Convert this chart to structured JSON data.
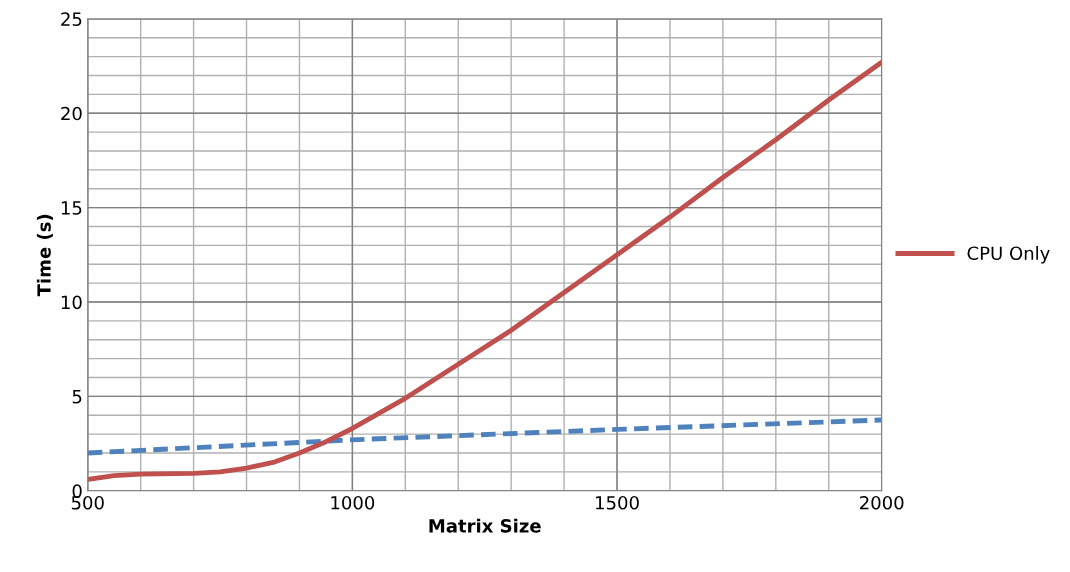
{
  "chart_data": {
    "type": "line",
    "xlabel": "Matrix Size",
    "ylabel": "Time (s)",
    "xlim": [
      500,
      2000
    ],
    "ylim": [
      0,
      25
    ],
    "xticks": [
      500,
      {
        "value": 600,
        "label": null
      },
      {
        "value": 700,
        "label": null
      },
      {
        "value": 800,
        "label": null
      },
      {
        "value": 900,
        "label": null
      },
      1000,
      {
        "value": 1100,
        "label": null
      },
      {
        "value": 1200,
        "label": null
      },
      {
        "value": 1300,
        "label": null
      },
      {
        "value": 1400,
        "label": null
      },
      1500,
      {
        "value": 1600,
        "label": null
      },
      {
        "value": 1700,
        "label": null
      },
      {
        "value": 1800,
        "label": null
      },
      {
        "value": 1900,
        "label": null
      },
      2000
    ],
    "yticks": [
      0,
      {
        "value": 1,
        "label": null
      },
      {
        "value": 2,
        "label": null
      },
      {
        "value": 3,
        "label": null
      },
      {
        "value": 4,
        "label": null
      },
      5,
      {
        "value": 6,
        "label": null
      },
      {
        "value": 7,
        "label": null
      },
      {
        "value": 8,
        "label": null
      },
      {
        "value": 9,
        "label": null
      },
      10,
      {
        "value": 11,
        "label": null
      },
      {
        "value": 12,
        "label": null
      },
      {
        "value": 13,
        "label": null
      },
      {
        "value": 14,
        "label": null
      },
      15,
      {
        "value": 16,
        "label": null
      },
      {
        "value": 17,
        "label": null
      },
      {
        "value": 18,
        "label": null
      },
      {
        "value": 19,
        "label": null
      },
      20,
      {
        "value": 21,
        "label": null
      },
      {
        "value": 22,
        "label": null
      },
      {
        "value": 23,
        "label": null
      },
      {
        "value": 24,
        "label": null
      },
      25
    ],
    "grid": true,
    "legend": "right",
    "marker": "none",
    "series": [
      {
        "color": "#4f81bd",
        "line_style": "dashed",
        "x": [
          500,
          1000,
          1500,
          2000
        ],
        "values": [
          2.0,
          2.7,
          3.25,
          3.75
        ]
      },
      {
        "name": "CPU Only",
        "color": "#c0504d",
        "line_style": "solid",
        "x": [
          500,
          550,
          600,
          700,
          750,
          800,
          850,
          900,
          950,
          1000,
          1100,
          1200,
          1300,
          1400,
          1500,
          1600,
          1700,
          1800,
          1900,
          2000
        ],
        "values": [
          0.6,
          0.8,
          0.88,
          0.92,
          1.0,
          1.2,
          1.5,
          2.0,
          2.6,
          3.3,
          4.9,
          6.7,
          8.5,
          10.5,
          12.5,
          14.5,
          16.6,
          18.6,
          20.7,
          22.7
        ]
      }
    ]
  }
}
